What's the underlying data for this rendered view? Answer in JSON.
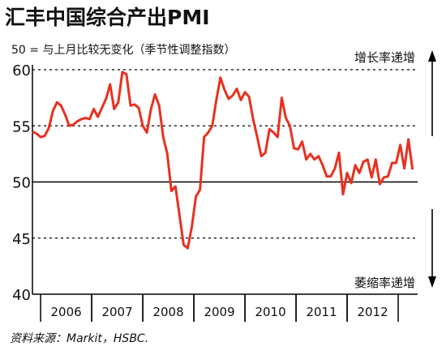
{
  "chart_data": {
    "type": "line",
    "title": "汇丰中国综合产出PMI",
    "subtitle": "50 = 与上月比较无变化（季节性调整指数）",
    "annotations": [
      "增长率递增",
      "萎缩率递增"
    ],
    "source": "资料来源：Markit，HSBC.",
    "x": [
      2005.84,
      2005.92,
      2006.0,
      2006.08,
      2006.16,
      2006.24,
      2006.32,
      2006.4,
      2006.48,
      2006.56,
      2006.64,
      2006.72,
      2006.8,
      2006.88,
      2006.96,
      2007.04,
      2007.12,
      2007.2,
      2007.28,
      2007.36,
      2007.44,
      2007.52,
      2007.6,
      2007.68,
      2007.76,
      2007.84,
      2007.92,
      2008.0,
      2008.08,
      2008.16,
      2008.24,
      2008.32,
      2008.4,
      2008.48,
      2008.56,
      2008.64,
      2008.72,
      2008.8,
      2008.88,
      2008.96,
      2009.04,
      2009.12,
      2009.2,
      2009.28,
      2009.36,
      2009.44,
      2009.52,
      2009.6,
      2009.68,
      2009.76,
      2009.84,
      2009.92,
      2010.0,
      2010.08,
      2010.16,
      2010.24,
      2010.32,
      2010.4,
      2010.48,
      2010.56,
      2010.64,
      2010.72,
      2010.8,
      2010.88,
      2010.96,
      2011.04,
      2011.12,
      2011.2,
      2011.28,
      2011.36,
      2011.44,
      2011.52,
      2011.6,
      2011.68,
      2011.76,
      2011.84,
      2011.92,
      2012.0,
      2012.08,
      2012.16,
      2012.24,
      2012.32,
      2012.4,
      2012.48,
      2012.56,
      2012.64,
      2012.72,
      2012.8,
      2012.88,
      2012.96,
      2013.04,
      2013.12,
      2013.2,
      2013.28
    ],
    "series": [
      {
        "color": "#e8311f",
        "values": [
          54.5,
          54.3,
          54.0,
          54.1,
          54.8,
          56.3,
          57.1,
          56.8,
          56.0,
          55.0,
          55.1,
          55.4,
          55.6,
          55.7,
          55.6,
          56.5,
          55.8,
          56.6,
          57.4,
          58.7,
          56.5,
          57.1,
          59.8,
          59.6,
          56.8,
          56.9,
          56.6,
          55.0,
          54.4,
          56.5,
          57.8,
          56.8,
          54.0,
          52.5,
          49.2,
          49.6,
          47.0,
          44.4,
          44.1,
          46.0,
          48.7,
          49.3,
          54.0,
          54.4,
          55.0,
          57.3,
          59.3,
          58.2,
          57.4,
          57.7,
          58.3,
          57.3,
          58.0,
          57.6,
          55.6,
          54.0,
          52.3,
          52.6,
          54.7,
          54.4,
          54.0,
          57.5,
          55.7,
          55.0,
          53.0,
          52.9,
          53.6,
          52.0,
          52.5,
          52.0,
          52.3,
          51.5,
          50.5,
          50.5,
          51.2,
          52.6,
          48.9,
          50.8,
          49.9,
          51.5,
          50.8,
          51.8,
          52.0,
          50.4,
          52.0,
          49.8,
          50.4,
          50.5,
          51.7,
          51.7,
          53.3,
          51.2,
          53.8,
          51.1
        ]
      }
    ],
    "xlim": [
      2005.84,
      2013.38
    ],
    "xticks": [
      {
        "value": 2006.5,
        "label": "2006"
      },
      {
        "value": 2007.5,
        "label": "2007"
      },
      {
        "value": 2008.5,
        "label": "2008"
      },
      {
        "value": 2009.5,
        "label": "2009"
      },
      {
        "value": 2010.5,
        "label": "2010"
      },
      {
        "value": 2011.5,
        "label": "2011"
      },
      {
        "value": 2012.5,
        "label": "2012"
      }
    ],
    "ylim": [
      40,
      60
    ],
    "yticks": [
      40,
      45,
      50,
      55,
      60
    ],
    "reference_line": 50,
    "grid": true
  }
}
